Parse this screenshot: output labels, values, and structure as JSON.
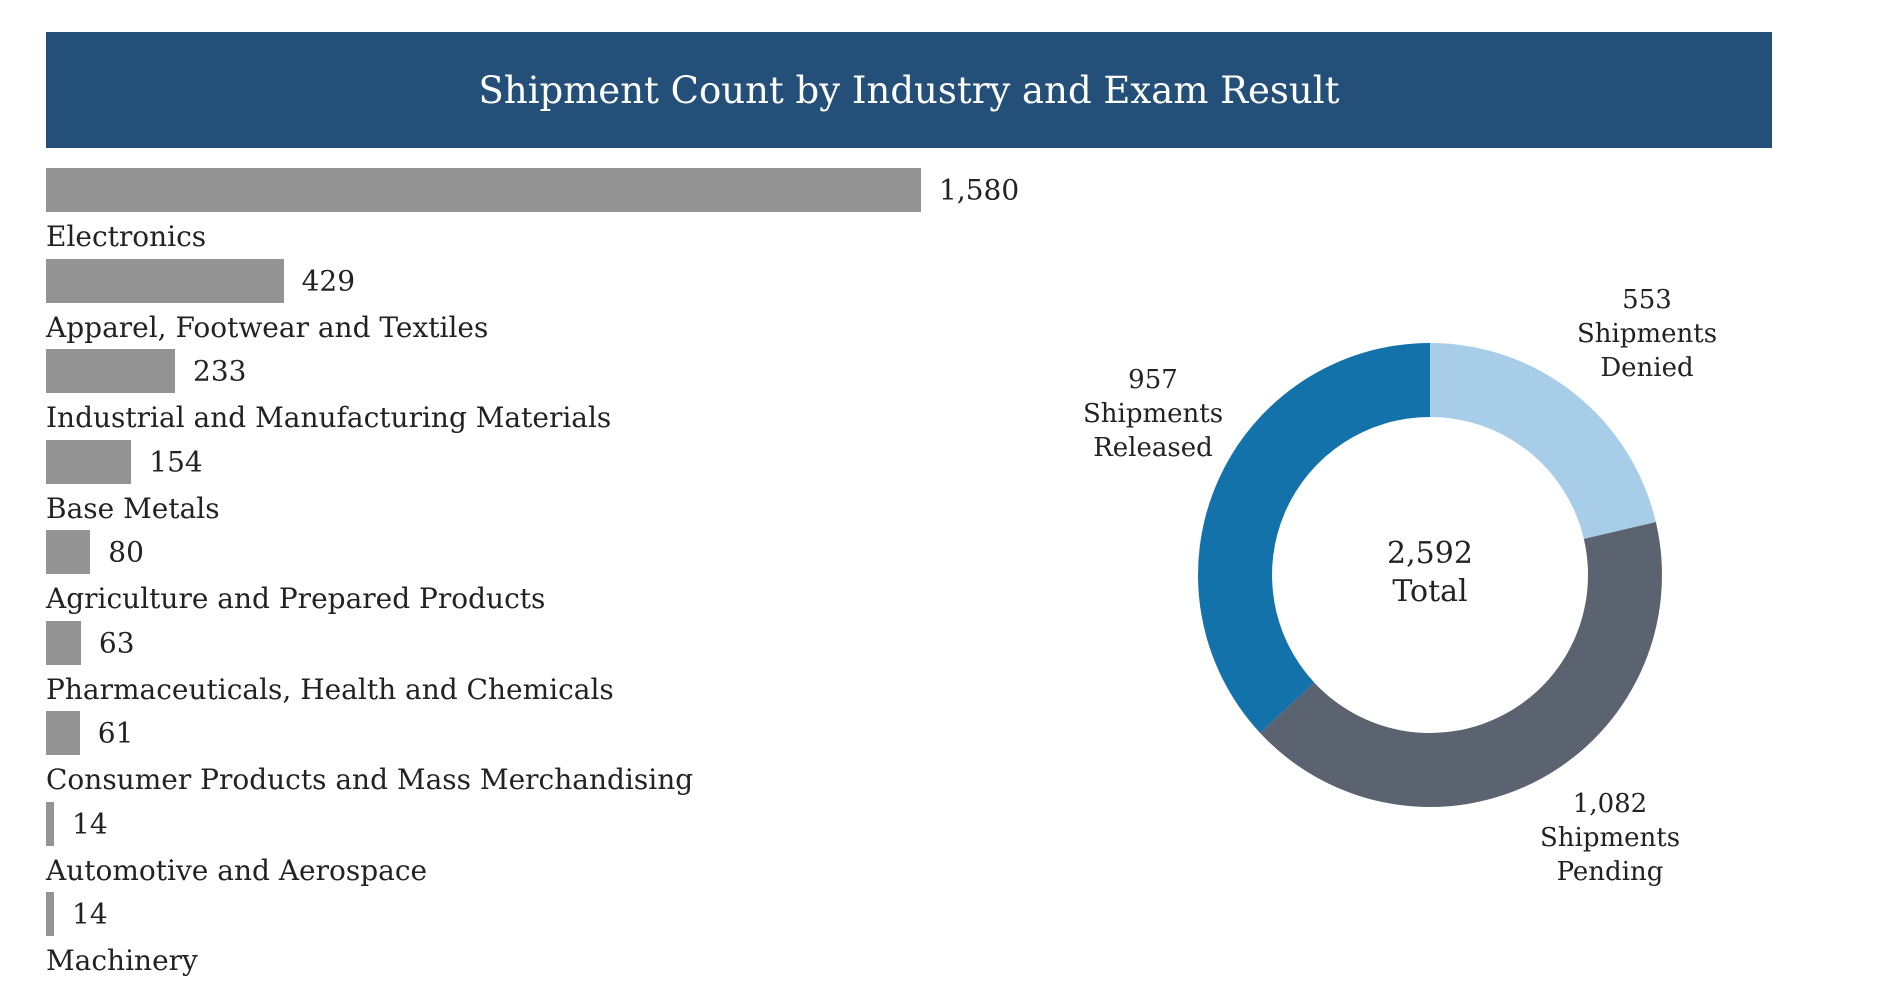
{
  "chart_data": [
    {
      "type": "bar",
      "orientation": "horizontal",
      "title": "Shipment Count by Industry and Exam Result",
      "categories": [
        "Electronics",
        "Apparel, Footwear and Textiles",
        "Industrial and Manufacturing Materials",
        "Base Metals",
        "Agriculture and Prepared Products",
        "Pharmaceuticals, Health and Chemicals",
        "Consumer Products and Mass Merchandising",
        "Automotive and Aerospace",
        "Machinery"
      ],
      "values": [
        1580,
        429,
        233,
        154,
        80,
        63,
        61,
        14,
        14
      ],
      "value_labels": [
        "1,580",
        "429",
        "233",
        "154",
        "80",
        "63",
        "61",
        "14",
        "14"
      ],
      "bar_color": "#939393",
      "xlim": [
        0,
        1580
      ],
      "grid": false,
      "legend": "none"
    },
    {
      "type": "pie",
      "style": "donut",
      "center_label": [
        "2,592",
        "Total"
      ],
      "slices": [
        {
          "value": 553,
          "value_label": "553",
          "label": [
            "Shipments",
            "Denied"
          ],
          "color": "#a7cde9"
        },
        {
          "value": 1082,
          "value_label": "1,082",
          "label": [
            "Shipments",
            "Pending"
          ],
          "color": "#5c6370"
        },
        {
          "value": 957,
          "value_label": "957",
          "label": [
            "Shipments",
            "Released"
          ],
          "color": "#1472ab"
        }
      ],
      "legend": "none"
    }
  ],
  "colors": {
    "header_background": "#244f79",
    "header_text": "#ffffff"
  }
}
